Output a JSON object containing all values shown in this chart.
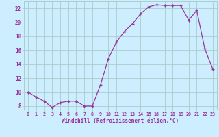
{
  "x": [
    0,
    1,
    2,
    3,
    4,
    5,
    6,
    7,
    8,
    9,
    10,
    11,
    12,
    13,
    14,
    15,
    16,
    17,
    18,
    19,
    20,
    21,
    22,
    23
  ],
  "y": [
    10,
    9.3,
    8.7,
    7.8,
    8.5,
    8.7,
    8.7,
    8.0,
    8.0,
    11.0,
    14.8,
    17.2,
    18.7,
    19.8,
    21.2,
    22.2,
    22.5,
    22.4,
    22.4,
    22.4,
    20.3,
    21.7,
    16.2,
    13.3
  ],
  "line_color": "#993399",
  "marker": "+",
  "xlabel": "Windchill (Refroidissement éolien,°C)",
  "xlabel_color": "#993399",
  "bg_color": "#cceeff",
  "grid_color": "#aacccc",
  "spine_color": "#aacccc",
  "tick_color": "#993399",
  "label_color": "#993399",
  "ylim": [
    7.5,
    23.0
  ],
  "xlim": [
    -0.5,
    23.5
  ],
  "yticks": [
    8,
    10,
    12,
    14,
    16,
    18,
    20,
    22
  ],
  "xticks": [
    0,
    1,
    2,
    3,
    4,
    5,
    6,
    7,
    8,
    9,
    10,
    11,
    12,
    13,
    14,
    15,
    16,
    17,
    18,
    19,
    20,
    21,
    22,
    23
  ],
  "xlabel_fontsize": 5.5,
  "ytick_fontsize": 5.5,
  "xtick_fontsize": 4.8
}
